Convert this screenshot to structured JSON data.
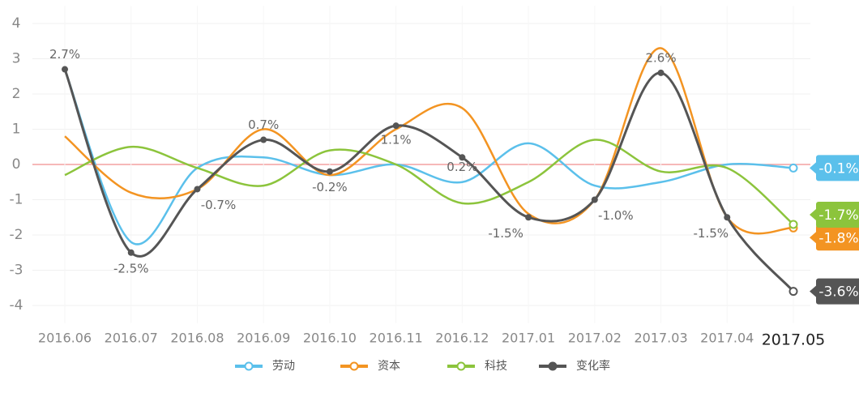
{
  "chart_data": {
    "type": "line",
    "categories": [
      "2016.06",
      "2016.07",
      "2016.08",
      "2016.09",
      "2016.10",
      "2016.11",
      "2016.12",
      "2017.01",
      "2017.02",
      "2017.03",
      "2017.04",
      "2017.05"
    ],
    "ylim": [
      -4.5,
      4.5
    ],
    "yticks": [
      -4,
      -3,
      -2,
      -1,
      0,
      1,
      2,
      3,
      4
    ],
    "grid": true,
    "series": [
      {
        "name": "劳动",
        "color": "#5bc0eb",
        "values": [
          2.7,
          -2.2,
          -0.1,
          0.2,
          -0.3,
          0,
          -0.5,
          0.6,
          -0.6,
          -0.5,
          0,
          -0.1
        ],
        "value_labels": [
          null,
          null,
          null,
          null,
          null,
          null,
          null,
          null,
          null,
          null,
          null,
          "-0.1%"
        ]
      },
      {
        "name": "资本",
        "color": "#f39422",
        "values": [
          0.8,
          -0.8,
          -0.7,
          1.0,
          -0.3,
          1.0,
          1.6,
          -1.4,
          -1.0,
          3.3,
          -1.5,
          -1.8
        ],
        "value_labels": [
          null,
          null,
          null,
          null,
          null,
          null,
          null,
          null,
          null,
          null,
          null,
          "-1.8%"
        ]
      },
      {
        "name": "科技",
        "color": "#8cc43c",
        "values": [
          -0.3,
          0.5,
          -0.1,
          -0.6,
          0.4,
          0,
          -1.1,
          -0.5,
          0.7,
          -0.2,
          -0.1,
          -1.7
        ],
        "value_labels": [
          null,
          null,
          null,
          null,
          null,
          null,
          null,
          null,
          null,
          null,
          null,
          "-1.7%"
        ]
      },
      {
        "name": "变化率",
        "color": "#555555",
        "values": [
          2.7,
          -2.5,
          -0.7,
          0.7,
          -0.2,
          1.1,
          0.2,
          -1.5,
          -1.0,
          2.6,
          -1.5,
          -3.6
        ],
        "value_labels": [
          "2.7%",
          "-2.5%",
          "-0.7%",
          "0.7%",
          "-0.2%",
          "1.1%",
          "0.2%",
          "-1.5%",
          "-1.0%",
          "2.6%",
          "-1.5%",
          "-3.6%"
        ]
      }
    ]
  }
}
